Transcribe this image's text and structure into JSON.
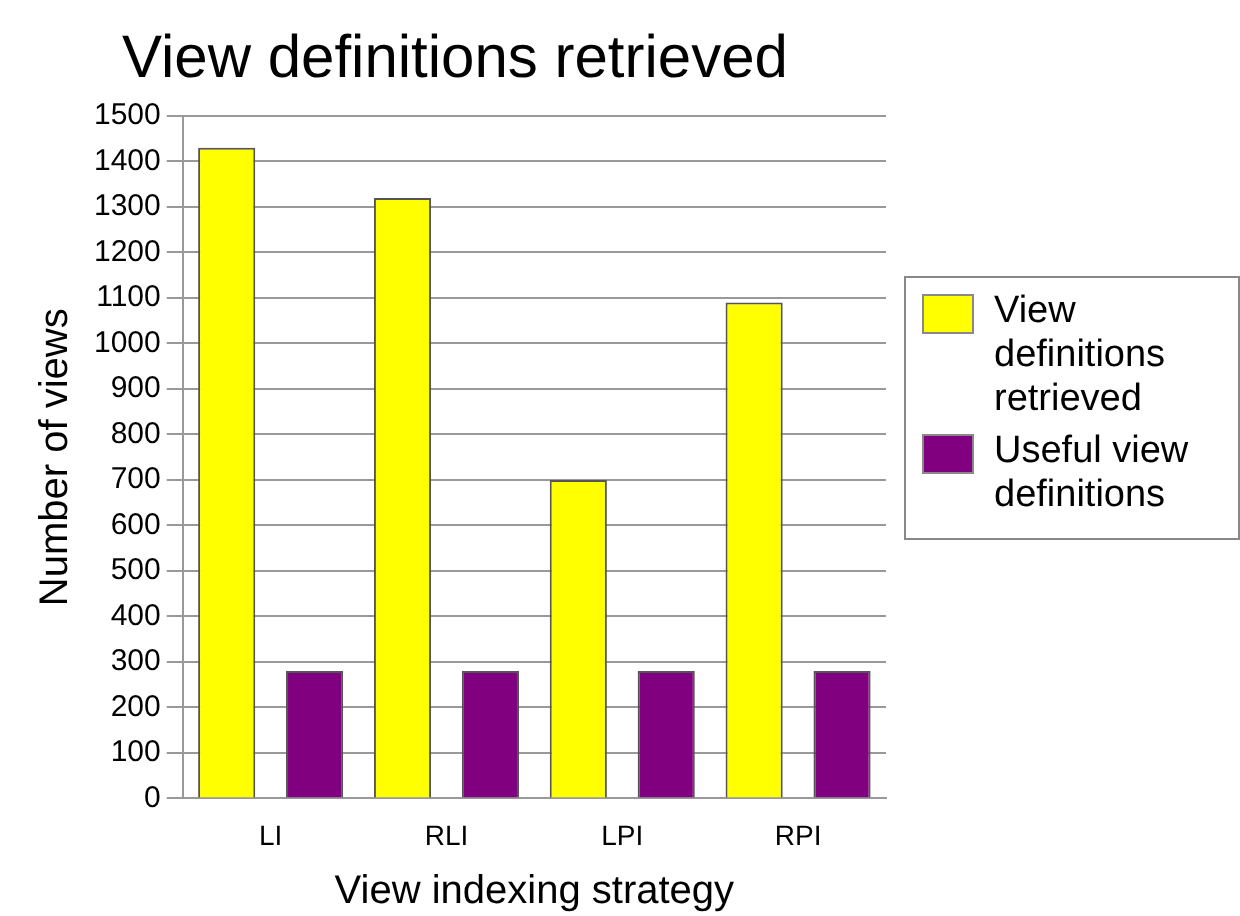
{
  "chart_data": {
    "type": "bar",
    "title": "View definitions retrieved",
    "xlabel": "View indexing strategy",
    "ylabel": "Number of views",
    "categories": [
      "LI",
      "RLI",
      "LPI",
      "RPI"
    ],
    "series": [
      {
        "name": "View definitions retrieved",
        "color": "#ffff00",
        "values": [
          1430,
          1320,
          700,
          1090
        ]
      },
      {
        "name": "Useful view definitions",
        "color": "#800080",
        "values": [
          280,
          280,
          280,
          280
        ]
      }
    ],
    "ylim": [
      0,
      1500
    ],
    "yticks": [
      0,
      100,
      200,
      300,
      400,
      500,
      600,
      700,
      800,
      900,
      1000,
      1100,
      1200,
      1300,
      1400,
      1500
    ],
    "grid": "y",
    "legend": "right"
  }
}
